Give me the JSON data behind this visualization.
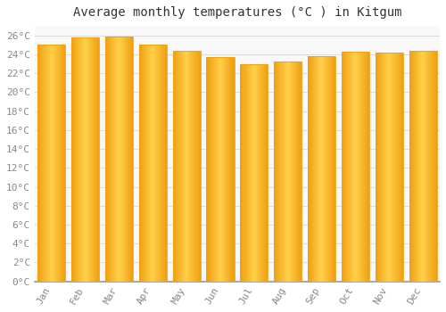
{
  "title": "Average monthly temperatures (°C ) in Kitgum",
  "months": [
    "Jan",
    "Feb",
    "Mar",
    "Apr",
    "May",
    "Jun",
    "Jul",
    "Aug",
    "Sep",
    "Oct",
    "Nov",
    "Dec"
  ],
  "values": [
    25.0,
    25.8,
    25.9,
    25.0,
    24.4,
    23.7,
    23.0,
    23.2,
    23.8,
    24.3,
    24.2,
    24.4
  ],
  "bar_color_center": "#FFD04A",
  "bar_color_edge": "#F0A010",
  "background_color": "#FFFFFF",
  "plot_bg_color": "#F8F8F8",
  "grid_color": "#DDDDDD",
  "ylim": [
    0,
    27
  ],
  "yticks": [
    0,
    2,
    4,
    6,
    8,
    10,
    12,
    14,
    16,
    18,
    20,
    22,
    24,
    26
  ],
  "title_fontsize": 10,
  "tick_fontsize": 8,
  "font_family": "monospace",
  "bar_width": 0.82
}
